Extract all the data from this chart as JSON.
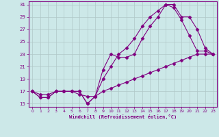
{
  "xlabel": "Windchill (Refroidissement éolien,°C)",
  "bg_color": "#cce8e8",
  "line_color": "#800080",
  "grid_color": "#b0c8c8",
  "xlim": [
    -0.5,
    23.5
  ],
  "ylim": [
    14.5,
    31.5
  ],
  "xticks": [
    0,
    1,
    2,
    3,
    4,
    5,
    6,
    7,
    8,
    9,
    10,
    11,
    12,
    13,
    14,
    15,
    16,
    17,
    18,
    19,
    20,
    21,
    22,
    23
  ],
  "yticks": [
    15,
    17,
    19,
    21,
    23,
    25,
    27,
    29,
    31
  ],
  "line1_x": [
    0,
    1,
    2,
    3,
    4,
    5,
    6,
    7,
    8,
    9,
    10,
    11,
    12,
    13,
    14,
    15,
    16,
    17,
    18,
    19,
    20,
    21,
    22,
    23
  ],
  "line1_y": [
    17,
    16,
    16,
    17,
    17,
    17,
    17,
    15,
    16.2,
    20.5,
    23,
    22.5,
    22.5,
    23,
    25.5,
    27.5,
    29,
    31,
    30.5,
    28.5,
    26,
    23.5,
    23.5,
    23
  ],
  "line2_x": [
    0,
    1,
    2,
    3,
    4,
    5,
    6,
    7,
    8,
    9,
    10,
    11,
    12,
    13,
    14,
    15,
    16,
    17,
    18,
    19,
    20,
    21,
    22,
    23
  ],
  "line2_y": [
    17,
    16,
    16,
    17,
    17,
    17,
    17,
    15,
    16.2,
    19,
    21,
    23,
    24,
    25.5,
    27.5,
    29,
    30,
    31,
    31,
    29,
    29,
    27,
    24,
    23
  ],
  "line3_x": [
    0,
    1,
    2,
    3,
    4,
    5,
    6,
    7,
    8,
    9,
    10,
    11,
    12,
    13,
    14,
    15,
    16,
    17,
    18,
    19,
    20,
    21,
    22,
    23
  ],
  "line3_y": [
    17,
    16.5,
    16.5,
    17,
    17,
    17,
    16.5,
    16.2,
    16.2,
    17,
    17.5,
    18,
    18.5,
    19,
    19.5,
    20,
    20.5,
    21,
    21.5,
    22,
    22.5,
    23,
    23,
    23
  ]
}
